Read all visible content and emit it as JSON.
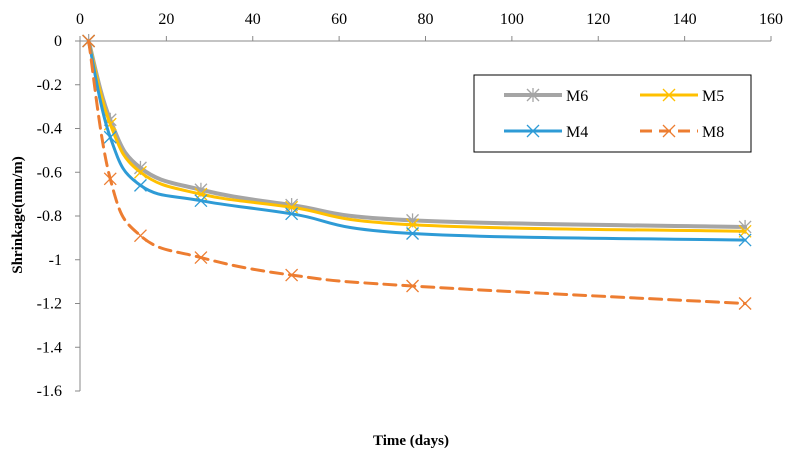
{
  "chart_data": {
    "type": "line",
    "title": "",
    "xlabel": "Time (days)",
    "ylabel": "Shrinkage(mm/m)",
    "xlim": [
      0,
      160
    ],
    "ylim": [
      -1.6,
      0
    ],
    "x_ticks": [
      "0",
      "20",
      "40",
      "60",
      "80",
      "100",
      "120",
      "140",
      "160"
    ],
    "y_ticks": [
      "0",
      "-0.2",
      "-0.4",
      "-0.6",
      "-0.8",
      "-1",
      "-1.2",
      "-1.4",
      "-1.6"
    ],
    "x_axis_position": "top",
    "grid": false,
    "legend_position": "top-right",
    "series": [
      {
        "name": "M6",
        "color": "#a5a5a5",
        "marker": "asterisk",
        "dashed": false,
        "x": [
          2,
          7,
          14,
          28,
          49,
          77,
          154
        ],
        "y": [
          0,
          -0.36,
          -0.58,
          -0.68,
          -0.75,
          -0.82,
          -0.85
        ]
      },
      {
        "name": "M5",
        "color": "#ffc000",
        "marker": "x",
        "dashed": false,
        "x": [
          2,
          7,
          14,
          28,
          49,
          77,
          154
        ],
        "y": [
          0,
          -0.38,
          -0.6,
          -0.7,
          -0.76,
          -0.84,
          -0.87
        ]
      },
      {
        "name": "M4",
        "color": "#2e9bd6",
        "marker": "x",
        "dashed": false,
        "x": [
          2,
          7,
          14,
          28,
          49,
          77,
          154
        ],
        "y": [
          0,
          -0.44,
          -0.66,
          -0.73,
          -0.79,
          -0.88,
          -0.91
        ]
      },
      {
        "name": "M8",
        "color": "#ed7d31",
        "marker": "x",
        "dashed": true,
        "x": [
          2,
          7,
          14,
          28,
          49,
          77,
          154
        ],
        "y": [
          0,
          -0.63,
          -0.89,
          -0.99,
          -1.07,
          -1.12,
          -1.2
        ]
      }
    ]
  }
}
